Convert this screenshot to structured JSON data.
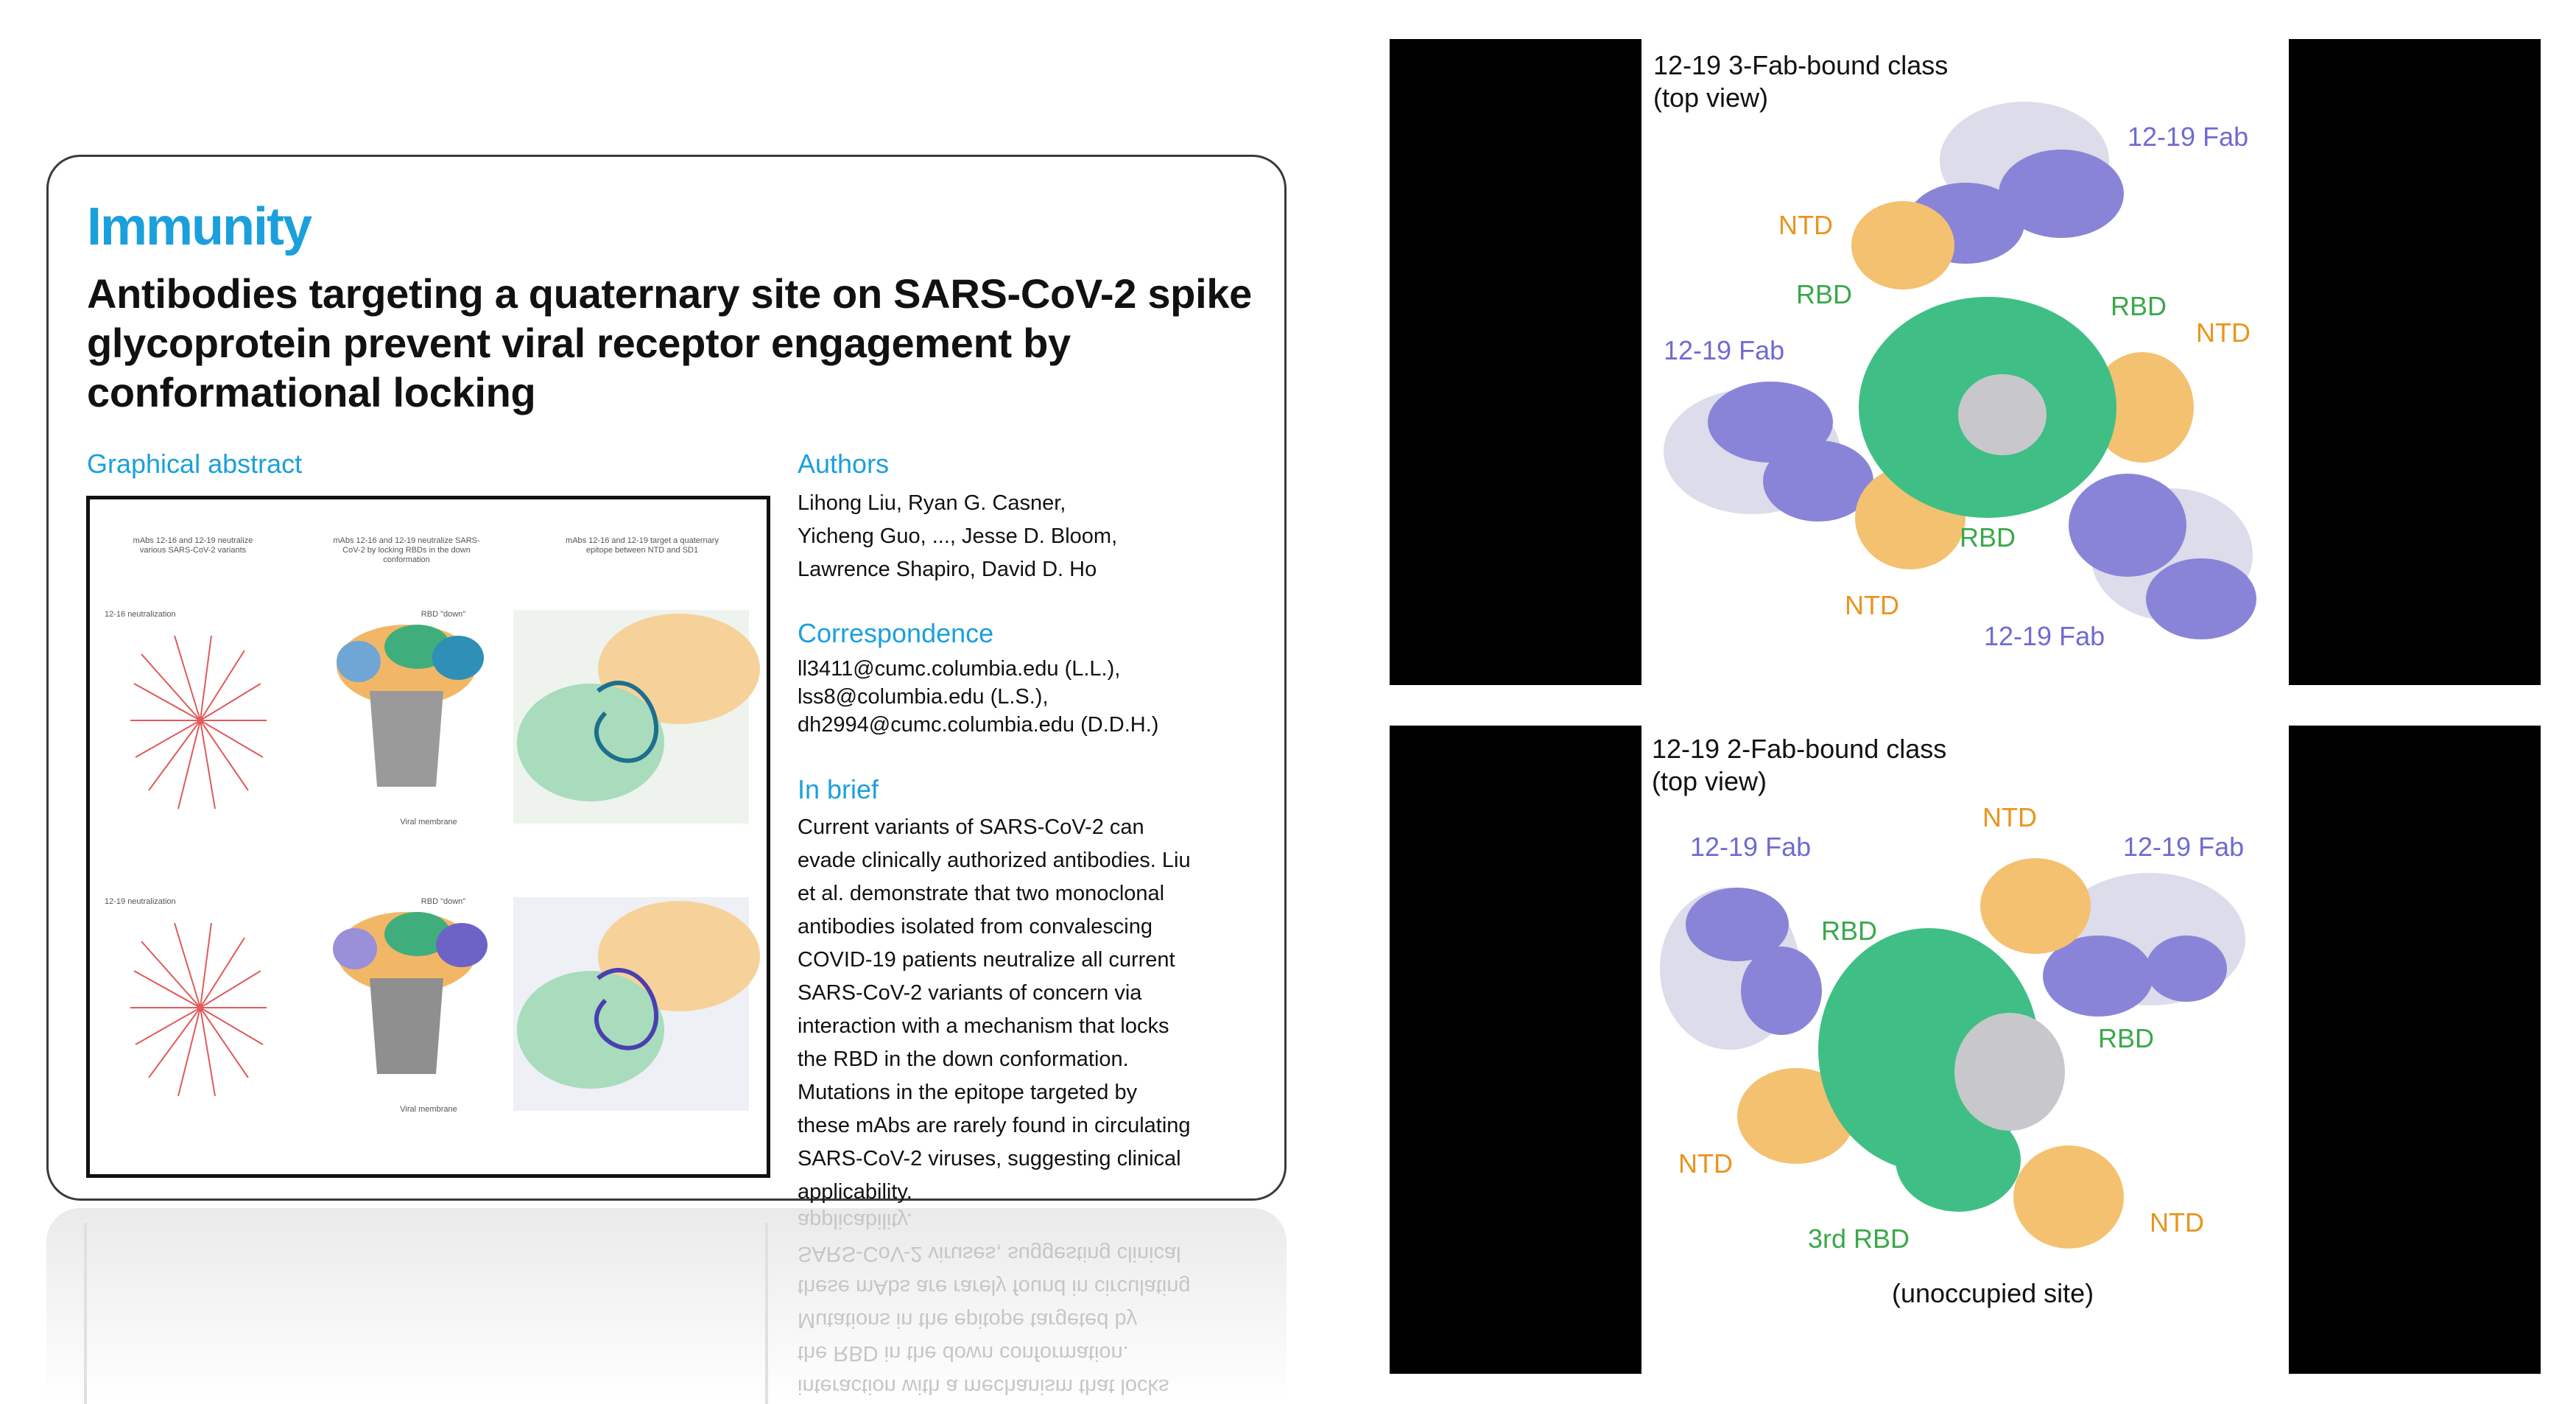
{
  "article": {
    "journal": "Immunity",
    "title": "Antibodies targeting a quaternary site on SARS-CoV-2 spike glycoprotein prevent viral receptor engagement by conformational locking",
    "graphical_abstract_heading": "Graphical abstract",
    "authors_heading": "Authors",
    "authors_lines": [
      "Lihong Liu, Ryan G. Casner,",
      "Yicheng Guo, ..., Jesse D. Bloom,",
      "Lawrence Shapiro, David D. Ho"
    ],
    "correspondence_heading": "Correspondence",
    "correspondence_lines": [
      "ll3411@cumc.columbia.edu (L.L.),",
      "lss8@columbia.edu (L.S.),",
      "dh2994@cumc.columbia.edu (D.D.H.)"
    ],
    "inbrief_heading": "In brief",
    "inbrief_lines": [
      "Current variants of SARS-CoV-2 can",
      "evade clinically authorized antibodies. Liu",
      "et al. demonstrate that two monoclonal",
      "antibodies isolated from convalescing",
      "COVID-19 patients neutralize all current",
      "SARS-CoV-2 variants of concern via",
      "interaction with a mechanism that locks",
      "the RBD in the down conformation.",
      "Mutations in the epitope targeted by",
      "these mAbs are rarely found in circulating",
      "SARS-CoV-2 viruses, suggesting clinical",
      "applicability."
    ],
    "ga_columns": [
      "mAbs 12-16 and 12-19 neutralize various SARS-CoV-2 variants",
      "mAbs 12-16 and 12-19 neutralize SARS-CoV-2 by locking RBDs in the down conformation",
      "mAbs 12-16 and 12-19 target a quaternary epitope between NTD and SD1"
    ],
    "ga_row_labels": [
      "12-16 neutralization",
      "12-19 neutralization"
    ],
    "ga_rbd_down": "RBD \"down\"",
    "ga_membrane": "Viral membrane"
  },
  "panels": {
    "top": {
      "title_line1": "12-19 3-Fab-bound class",
      "title_line2": "(top view)",
      "labels": {
        "fab_a": "12-19 Fab",
        "fab_b": "12-19 Fab",
        "fab_c": "12-19 Fab",
        "ntd_a": "NTD",
        "ntd_b": "NTD",
        "ntd_c": "NTD",
        "rbd_a": "RBD",
        "rbd_b": "RBD",
        "rbd_c": "RBD"
      }
    },
    "bottom": {
      "title_line1": "12-19 2-Fab-bound class",
      "title_line2": "(top view)",
      "labels": {
        "ntd_top": "NTD",
        "fab_left": "12-19 Fab",
        "fab_right": "12-19 Fab",
        "rbd_left": "RBD",
        "rbd_right": "RBD",
        "ntd_left": "NTD",
        "ntd_right": "NTD",
        "rbd_third": "3rd RBD",
        "unoccupied": "(unoccupied site)"
      }
    }
  },
  "colors": {
    "immunity_blue": "#1aa0dc",
    "rbd_green": "#3aa84a",
    "ntd_orange": "#e8951e",
    "fab_purple": "#6f6bd1",
    "density_green": "#3fbf85",
    "density_orange": "#f3c170",
    "density_purple": "#8a84d8",
    "density_white": "#dcdcea"
  }
}
